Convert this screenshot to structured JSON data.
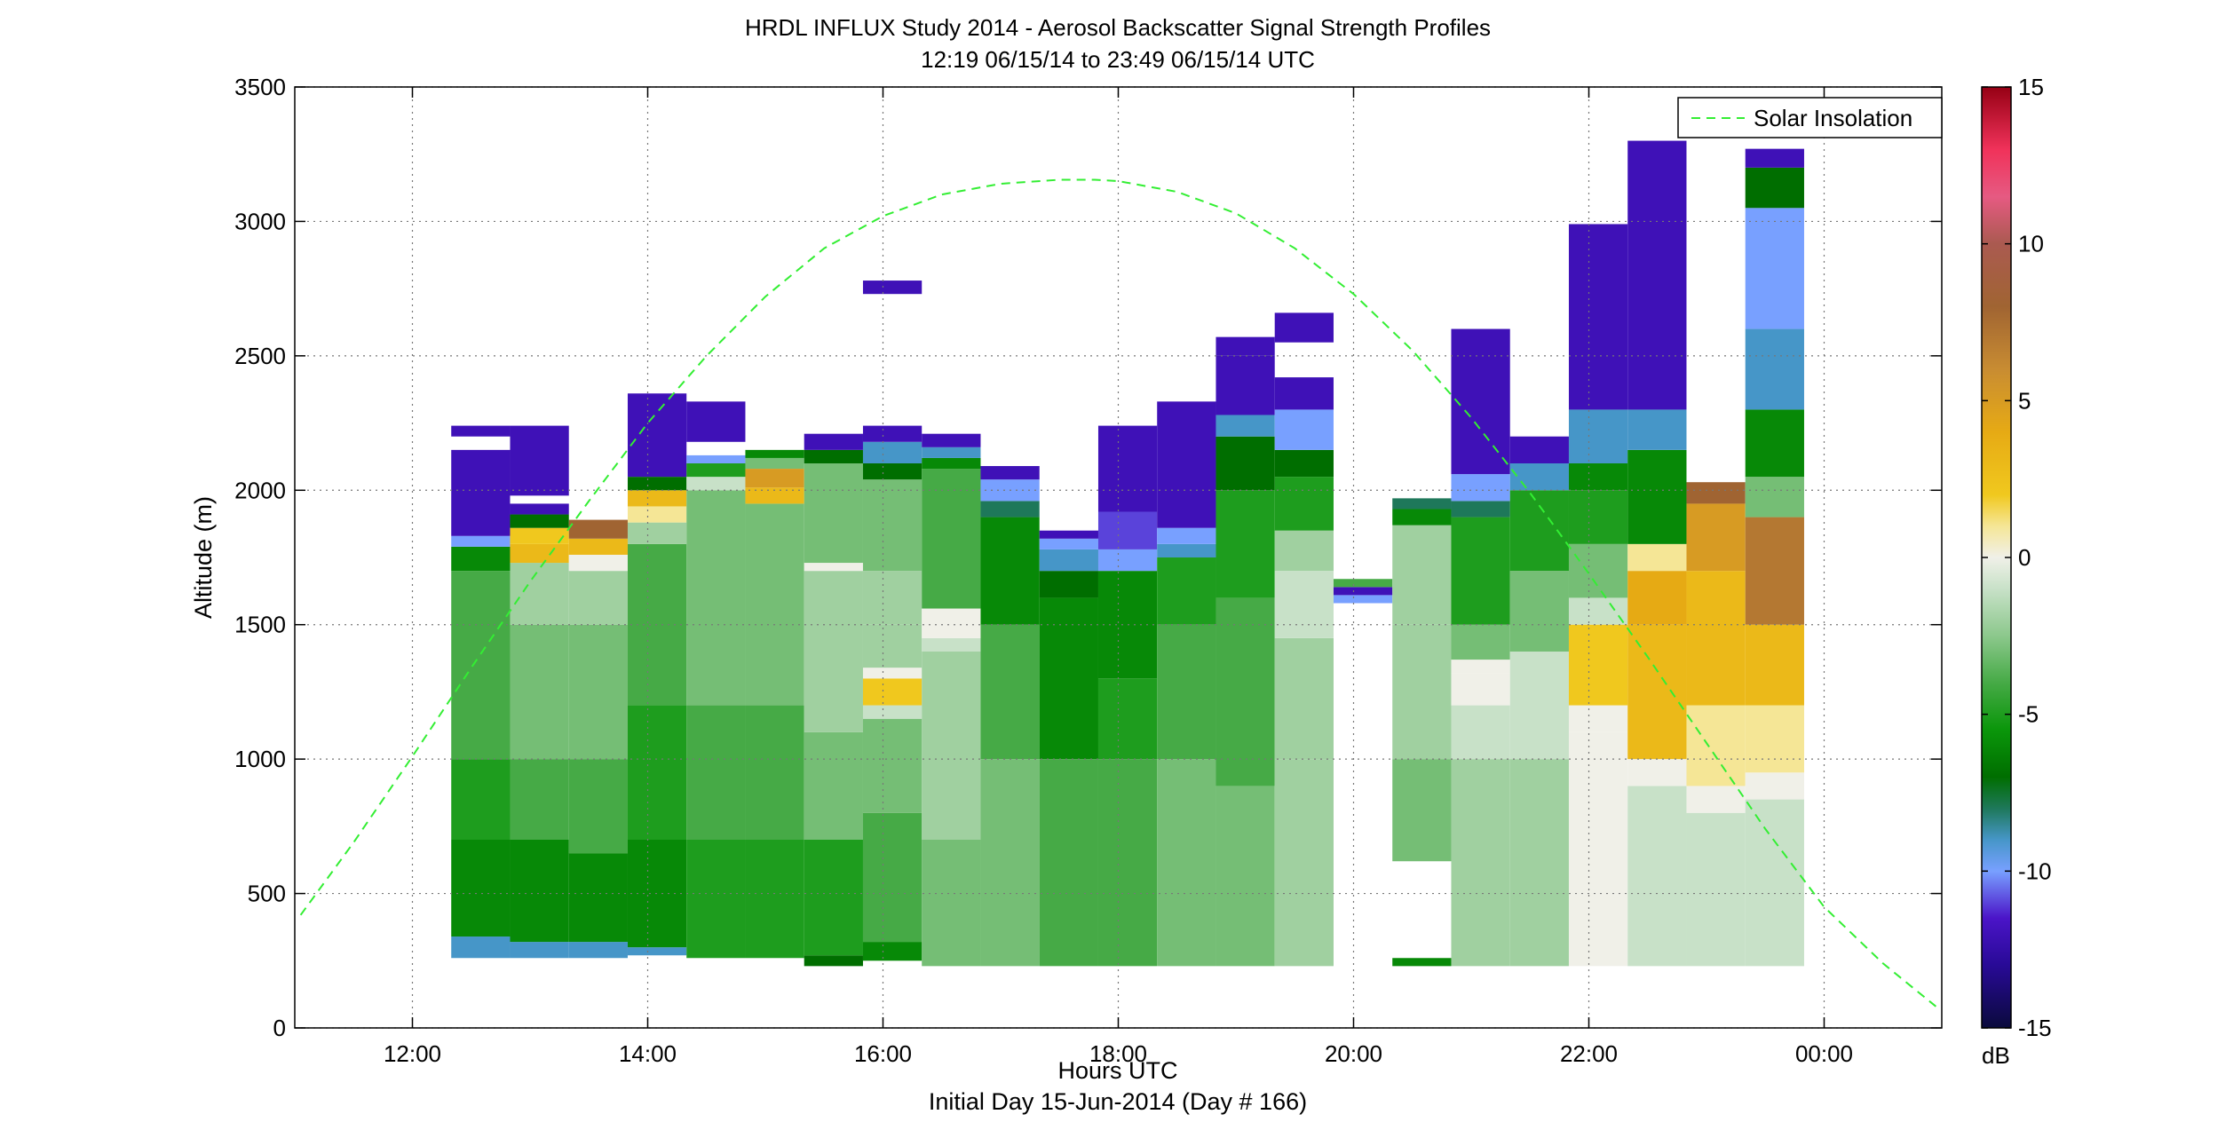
{
  "chart_data": {
    "type": "heatmap",
    "title": "HRDL INFLUX Study 2014 - Aerosol Backscatter Signal Strength Profiles",
    "subtitle": "12:19 06/15/14 to 23:49 06/15/14  UTC",
    "xlabel": "Hours UTC",
    "xlabel2": "Initial Day 15-Jun-2014 (Day # 166)",
    "ylabel": "Altitude (m)",
    "xlim": [
      11.0,
      25.0
    ],
    "ylim": [
      0,
      3500
    ],
    "xticks": [
      12,
      14,
      16,
      18,
      20,
      22,
      24
    ],
    "xtick_labels": [
      "12:00",
      "14:00",
      "16:00",
      "18:00",
      "20:00",
      "22:00",
      "00:00"
    ],
    "yticks": [
      0,
      500,
      1000,
      1500,
      2000,
      2500,
      3000,
      3500
    ],
    "ytick_labels": [
      "0",
      "500",
      "1000",
      "1500",
      "2000",
      "2500",
      "3000",
      "3500"
    ],
    "grid": true,
    "legend": {
      "position": "top-right",
      "entries": [
        "Solar Insolation"
      ]
    },
    "colorbar": {
      "label": "dB",
      "range": [
        -15,
        15
      ],
      "ticks": [
        15,
        10,
        5,
        0,
        -5,
        -10,
        -15
      ],
      "tick_labels": [
        "15",
        "10",
        "5",
        "0",
        "-5",
        "-10",
        "-15"
      ]
    },
    "profile_width_hours": 0.5,
    "profiles": [
      {
        "t": 12.33,
        "bins": [
          [
            260,
            340,
            -9
          ],
          [
            340,
            700,
            -6
          ],
          [
            700,
            1000,
            -5
          ],
          [
            1000,
            1700,
            -4
          ],
          [
            1700,
            1790,
            -6
          ],
          [
            1790,
            1830,
            -10
          ],
          [
            1830,
            2150,
            -12
          ],
          [
            2200,
            2240,
            -12
          ]
        ]
      },
      {
        "t": 12.83,
        "bins": [
          [
            260,
            320,
            -9
          ],
          [
            320,
            700,
            -6
          ],
          [
            700,
            1000,
            -4
          ],
          [
            1000,
            1500,
            -3
          ],
          [
            1500,
            1730,
            -2
          ],
          [
            1730,
            1800,
            3
          ],
          [
            1800,
            1860,
            2
          ],
          [
            1860,
            1910,
            -7
          ],
          [
            1910,
            1950,
            -12
          ],
          [
            1980,
            2240,
            -12
          ]
        ]
      },
      {
        "t": 13.33,
        "bins": [
          [
            260,
            320,
            -9
          ],
          [
            320,
            650,
            -6
          ],
          [
            650,
            1000,
            -4
          ],
          [
            1000,
            1500,
            -3
          ],
          [
            1500,
            1700,
            -2
          ],
          [
            1700,
            1760,
            0
          ],
          [
            1760,
            1820,
            3
          ],
          [
            1820,
            1890,
            8
          ]
        ]
      },
      {
        "t": 13.83,
        "bins": [
          [
            270,
            300,
            -9
          ],
          [
            300,
            700,
            -6
          ],
          [
            700,
            1200,
            -5
          ],
          [
            1200,
            1800,
            -4
          ],
          [
            1800,
            1880,
            -2
          ],
          [
            1880,
            1940,
            1
          ],
          [
            1940,
            2000,
            3
          ],
          [
            2000,
            2050,
            -7
          ],
          [
            2050,
            2360,
            -12
          ]
        ]
      },
      {
        "t": 14.33,
        "bins": [
          [
            260,
            700,
            -5
          ],
          [
            700,
            1200,
            -4
          ],
          [
            1200,
            2000,
            -3
          ],
          [
            2000,
            2050,
            -1
          ],
          [
            2050,
            2100,
            -5
          ],
          [
            2100,
            2130,
            -10
          ],
          [
            2180,
            2330,
            -12
          ]
        ]
      },
      {
        "t": 14.83,
        "bins": [
          [
            260,
            700,
            -5
          ],
          [
            700,
            1200,
            -4
          ],
          [
            1200,
            1950,
            -3
          ],
          [
            1950,
            2010,
            3
          ],
          [
            2010,
            2080,
            5
          ],
          [
            2080,
            2120,
            -3
          ],
          [
            2120,
            2150,
            -6
          ]
        ]
      },
      {
        "t": 15.33,
        "bins": [
          [
            230,
            270,
            -7
          ],
          [
            270,
            700,
            -5
          ],
          [
            700,
            1100,
            -3
          ],
          [
            1100,
            1400,
            -2
          ],
          [
            1400,
            1700,
            -2
          ],
          [
            1700,
            1730,
            0
          ],
          [
            1730,
            2100,
            -3
          ],
          [
            2100,
            2150,
            -7
          ],
          [
            2150,
            2210,
            -12
          ]
        ]
      },
      {
        "t": 15.83,
        "bins": [
          [
            250,
            320,
            -6
          ],
          [
            320,
            800,
            -4
          ],
          [
            800,
            1150,
            -3
          ],
          [
            1150,
            1200,
            -1
          ],
          [
            1200,
            1300,
            2
          ],
          [
            1300,
            1340,
            0
          ],
          [
            1340,
            1500,
            -2
          ],
          [
            1500,
            1700,
            -2
          ],
          [
            1700,
            2040,
            -3
          ],
          [
            2040,
            2100,
            -7
          ],
          [
            2100,
            2180,
            -9
          ],
          [
            2180,
            2240,
            -12
          ],
          [
            2730,
            2780,
            -12
          ]
        ]
      },
      {
        "t": 16.33,
        "bins": [
          [
            230,
            700,
            -3
          ],
          [
            700,
            1400,
            -2
          ],
          [
            1400,
            1450,
            -1
          ],
          [
            1450,
            1560,
            0
          ],
          [
            1560,
            2080,
            -4
          ],
          [
            2080,
            2120,
            -6
          ],
          [
            2120,
            2160,
            -9
          ],
          [
            2160,
            2210,
            -12
          ]
        ]
      },
      {
        "t": 16.83,
        "bins": [
          [
            230,
            1000,
            -3
          ],
          [
            1000,
            1500,
            -4
          ],
          [
            1500,
            1900,
            -6
          ],
          [
            1900,
            1960,
            -8
          ],
          [
            1960,
            2040,
            -10
          ],
          [
            2040,
            2090,
            -12
          ]
        ]
      },
      {
        "t": 17.33,
        "bins": [
          [
            230,
            1000,
            -4
          ],
          [
            1000,
            1600,
            -6
          ],
          [
            1600,
            1700,
            -7
          ],
          [
            1700,
            1780,
            -9
          ],
          [
            1780,
            1820,
            -10
          ],
          [
            1820,
            1850,
            -12
          ]
        ]
      },
      {
        "t": 17.83,
        "bins": [
          [
            230,
            1000,
            -4
          ],
          [
            1000,
            1300,
            -5
          ],
          [
            1300,
            1700,
            -6
          ],
          [
            1700,
            1780,
            -10
          ],
          [
            1780,
            1920,
            -11
          ],
          [
            1920,
            2240,
            -12
          ]
        ]
      },
      {
        "t": 18.33,
        "bins": [
          [
            230,
            1000,
            -3
          ],
          [
            1000,
            1500,
            -4
          ],
          [
            1500,
            1750,
            -5
          ],
          [
            1750,
            1800,
            -9
          ],
          [
            1800,
            1860,
            -10
          ],
          [
            1860,
            2330,
            -12
          ]
        ]
      },
      {
        "t": 18.83,
        "bins": [
          [
            230,
            900,
            -3
          ],
          [
            900,
            1600,
            -4
          ],
          [
            1600,
            2000,
            -5
          ],
          [
            2000,
            2200,
            -7
          ],
          [
            2200,
            2280,
            -9
          ],
          [
            2280,
            2500,
            -12
          ],
          [
            2500,
            2570,
            -12
          ]
        ]
      },
      {
        "t": 19.33,
        "bins": [
          [
            230,
            1000,
            -2
          ],
          [
            1000,
            1450,
            -2
          ],
          [
            1450,
            1700,
            -1
          ],
          [
            1700,
            1850,
            -2
          ],
          [
            1850,
            2050,
            -5
          ],
          [
            2050,
            2150,
            -7
          ],
          [
            2150,
            2300,
            -10
          ],
          [
            2300,
            2420,
            -12
          ],
          [
            2550,
            2660,
            -12
          ]
        ]
      },
      {
        "t": 19.83,
        "bins": [
          [
            1580,
            1610,
            -10
          ],
          [
            1610,
            1640,
            -12
          ],
          [
            1640,
            1670,
            -4
          ]
        ]
      },
      {
        "t": 20.33,
        "bins": [
          [
            230,
            260,
            -6
          ],
          [
            620,
            1000,
            -3
          ],
          [
            1000,
            1500,
            -2
          ],
          [
            1500,
            1870,
            -2
          ],
          [
            1870,
            1930,
            -6
          ],
          [
            1930,
            1970,
            -8
          ]
        ]
      },
      {
        "t": 20.83,
        "bins": [
          [
            230,
            1000,
            -2
          ],
          [
            1000,
            1200,
            -1
          ],
          [
            1200,
            1320,
            0
          ],
          [
            1320,
            1370,
            0
          ],
          [
            1370,
            1500,
            -3
          ],
          [
            1500,
            1900,
            -5
          ],
          [
            1900,
            1960,
            -8
          ],
          [
            1960,
            2060,
            -10
          ],
          [
            2060,
            2600,
            -12
          ]
        ]
      },
      {
        "t": 21.33,
        "bins": [
          [
            230,
            1000,
            -2
          ],
          [
            1000,
            1400,
            -1
          ],
          [
            1400,
            1700,
            -3
          ],
          [
            1700,
            2000,
            -5
          ],
          [
            2000,
            2100,
            -9
          ],
          [
            2100,
            2200,
            -12
          ]
        ]
      },
      {
        "t": 21.83,
        "bins": [
          [
            230,
            1100,
            0
          ],
          [
            1100,
            1200,
            0
          ],
          [
            1200,
            1500,
            2
          ],
          [
            1500,
            1600,
            -1
          ],
          [
            1600,
            1800,
            -3
          ],
          [
            1800,
            2000,
            -5
          ],
          [
            2000,
            2100,
            -6
          ],
          [
            2100,
            2300,
            -9
          ],
          [
            2300,
            2990,
            -12
          ]
        ]
      },
      {
        "t": 22.33,
        "bins": [
          [
            230,
            900,
            -1
          ],
          [
            900,
            1000,
            0
          ],
          [
            1000,
            1500,
            3
          ],
          [
            1500,
            1700,
            4
          ],
          [
            1700,
            1800,
            1
          ],
          [
            1800,
            2150,
            -6
          ],
          [
            2150,
            2300,
            -9
          ],
          [
            2300,
            3300,
            -12
          ]
        ]
      },
      {
        "t": 22.83,
        "bins": [
          [
            230,
            800,
            -1
          ],
          [
            800,
            900,
            0
          ],
          [
            900,
            1200,
            1
          ],
          [
            1200,
            1700,
            3
          ],
          [
            1700,
            1950,
            5
          ],
          [
            1950,
            2030,
            8
          ]
        ]
      },
      {
        "t": 23.33,
        "bins": [
          [
            230,
            850,
            -1
          ],
          [
            850,
            950,
            0
          ],
          [
            950,
            1200,
            1
          ],
          [
            1200,
            1500,
            3
          ],
          [
            1500,
            1900,
            7
          ],
          [
            1900,
            2050,
            -3
          ],
          [
            2050,
            2300,
            -6
          ],
          [
            2300,
            2600,
            -9
          ],
          [
            2600,
            3050,
            -10
          ],
          [
            3050,
            3200,
            -7
          ],
          [
            3200,
            3270,
            -12
          ]
        ]
      }
    ],
    "solar_insolation": {
      "name": "Solar Insolation",
      "x": [
        11.05,
        11.5,
        12.0,
        12.5,
        13.0,
        13.5,
        14.0,
        14.5,
        15.0,
        15.5,
        16.0,
        16.5,
        17.0,
        17.5,
        17.8,
        18.0,
        18.5,
        19.0,
        19.5,
        20.0,
        20.5,
        21.0,
        21.5,
        22.0,
        22.5,
        23.0,
        23.5,
        24.0,
        24.5,
        24.95
      ],
      "y": [
        420,
        690,
        1010,
        1340,
        1660,
        1960,
        2250,
        2500,
        2720,
        2900,
        3020,
        3100,
        3140,
        3155,
        3155,
        3150,
        3110,
        3030,
        2900,
        2730,
        2520,
        2270,
        1990,
        1690,
        1380,
        1060,
        740,
        450,
        240,
        80
      ]
    },
    "colors": {
      "solar_line": "#33ee33",
      "grid": "#777777",
      "gray_bin": "#b0b0b0"
    }
  }
}
